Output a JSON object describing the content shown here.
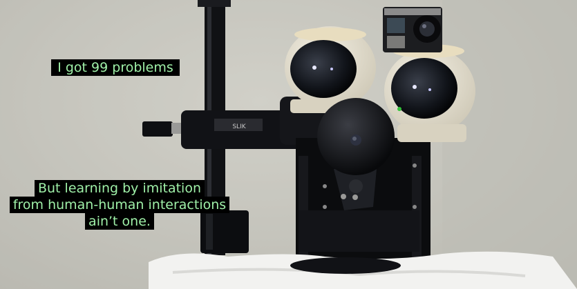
{
  "captions": {
    "top": [
      "I got 99 problems"
    ],
    "bottom": [
      "But learning by imitation",
      "from human-human interactions",
      "ain’t one."
    ]
  },
  "scene": {
    "camera_brand": "SLIK"
  }
}
